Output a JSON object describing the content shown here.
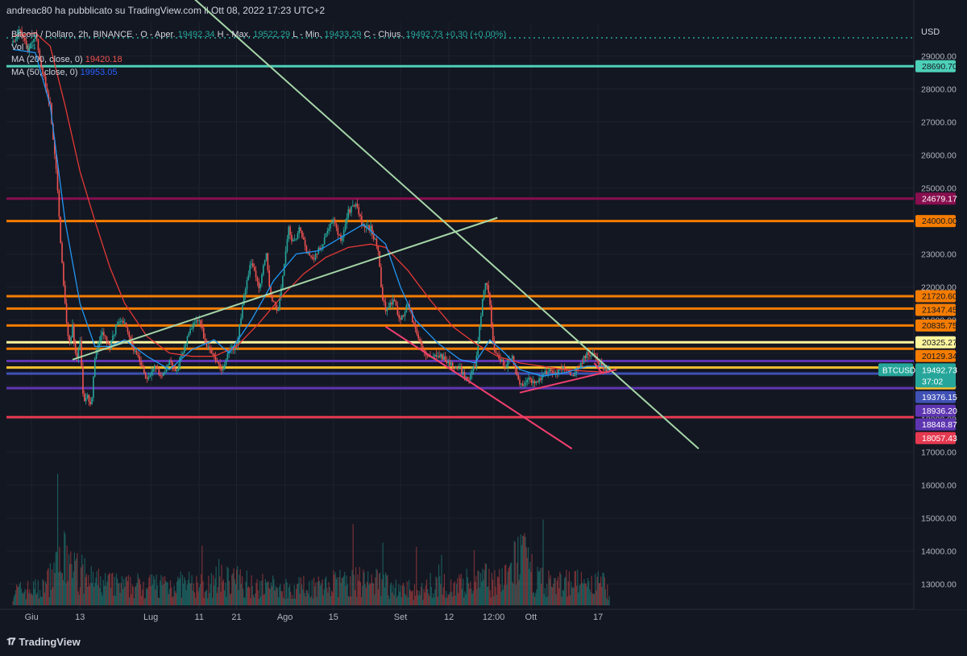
{
  "caption": "andreac80 ha pubblicato su TradingView.com il Ott 08, 2022 17:23 UTC+2",
  "legend": {
    "symbol": "Bitcoin / Dollaro, 2h, BINANCE",
    "o_label": "O - Aper.",
    "o_value": "19492.34",
    "h_label": "H - Max.",
    "h_value": "19522.29",
    "l_label": "L - Min.",
    "l_value": "19433.29",
    "c_label": "C - Chius.",
    "c_value": "19492.73",
    "change": "+0.30 (+0.00%)",
    "vol_label": "Vol",
    "vol_value": "64",
    "ma200_label": "MA (200, close, 0)",
    "ma200_value": "19420.18",
    "ma50_label": "MA (50, close, 0)",
    "ma50_value": "19953.05"
  },
  "footer": {
    "brand": "TradingView",
    "mark": "𝟏𝟕"
  },
  "colors": {
    "background": "#131722",
    "grid": "#1e222d",
    "up": "#26a69a",
    "down": "#ef5350",
    "ma200": "#e53935",
    "ma50": "#2196f3",
    "trendline_green": "#a5d6a7",
    "trendline_red": "#f23f6f",
    "level_teal": "#4dd0b8",
    "level_magenta": "#880e4f",
    "level_orange": "#f57c00",
    "level_yellow": "#fff59d",
    "level_purple": "#5e35b1",
    "level_red": "#e53950",
    "volume": "#787b86"
  },
  "chart_data": {
    "type": "candlestick",
    "symbol_tag": "BTCUSD",
    "currency": "USD",
    "countdown": "37:02",
    "last_price": 19492.73,
    "ylim": [
      12800,
      30200
    ],
    "yticks": [
      13000,
      14000,
      15000,
      16000,
      17000,
      18000,
      19000,
      20000,
      21000,
      22000,
      23000,
      24000,
      25000,
      26000,
      27000,
      28000,
      29000
    ],
    "x_tick_labels": [
      "Giu",
      "13",
      "Lug",
      "11",
      "21",
      "Ago",
      "15",
      "Set",
      "12",
      "12:00",
      "Ott",
      "17"
    ],
    "horizontal_levels": [
      {
        "price": 28690.7,
        "label": "28690.70",
        "color": "#4dd0b8"
      },
      {
        "price": 24679.17,
        "label": "24679.17",
        "color": "#880e4f"
      },
      {
        "price": 24000.0,
        "label": "24000.00",
        "color": "#f57c00"
      },
      {
        "price": 21720.6,
        "label": "21720.60",
        "color": "#f57c00"
      },
      {
        "price": 21347.45,
        "label": "21347.45",
        "color": "#f57c00"
      },
      {
        "price": 20835.75,
        "label": "20835.75",
        "color": "#f57c00"
      },
      {
        "price": 20325.27,
        "label": "20325.27",
        "color": "#fff59d"
      },
      {
        "price": 20129.34,
        "label": "20129.34",
        "color": "#f57c00"
      },
      {
        "price": 19757.63,
        "label": "19757.63",
        "color": "#5e35b1"
      },
      {
        "price": 19560.8,
        "label": "19560.80",
        "color": "#fbc02d"
      },
      {
        "price": 19376.15,
        "label": "19376.15",
        "color": "#3f51b5"
      },
      {
        "price": 18936.2,
        "label": "18936.20",
        "color": "#5e35b1"
      },
      {
        "price": 18057.43,
        "label": "18057.43",
        "color": "#e53950"
      }
    ],
    "extra_axis_labels": [
      {
        "label": "18848.87",
        "color": "#5e35b1"
      }
    ],
    "price_path": [
      [
        0,
        29400
      ],
      [
        2,
        29800
      ],
      [
        4,
        29200
      ],
      [
        6,
        29700
      ],
      [
        8,
        28500
      ],
      [
        10,
        27500
      ],
      [
        12,
        25000
      ],
      [
        13,
        23000
      ],
      [
        14,
        21500
      ],
      [
        15,
        20200
      ],
      [
        16,
        20800
      ],
      [
        17,
        19800
      ],
      [
        18,
        20300
      ],
      [
        19,
        18400
      ],
      [
        20,
        18700
      ],
      [
        21,
        18300
      ],
      [
        22,
        19900
      ],
      [
        24,
        20700
      ],
      [
        26,
        20200
      ],
      [
        28,
        20900
      ],
      [
        30,
        21000
      ],
      [
        32,
        20200
      ],
      [
        34,
        19800
      ],
      [
        36,
        19200
      ],
      [
        38,
        19600
      ],
      [
        40,
        19300
      ],
      [
        42,
        19700
      ],
      [
        44,
        19500
      ],
      [
        46,
        20200
      ],
      [
        48,
        20800
      ],
      [
        50,
        21000
      ],
      [
        52,
        20200
      ],
      [
        54,
        19900
      ],
      [
        56,
        19400
      ],
      [
        58,
        20100
      ],
      [
        60,
        20200
      ],
      [
        62,
        21700
      ],
      [
        64,
        22800
      ],
      [
        66,
        22000
      ],
      [
        68,
        23000
      ],
      [
        69,
        21800
      ],
      [
        71,
        21200
      ],
      [
        72,
        22000
      ],
      [
        74,
        23800
      ],
      [
        75,
        23300
      ],
      [
        77,
        23800
      ],
      [
        79,
        23000
      ],
      [
        81,
        22900
      ],
      [
        83,
        23300
      ],
      [
        84,
        23600
      ],
      [
        86,
        24000
      ],
      [
        88,
        23400
      ],
      [
        90,
        24300
      ],
      [
        92,
        24500
      ],
      [
        94,
        23800
      ],
      [
        96,
        23800
      ],
      [
        98,
        23100
      ],
      [
        99,
        21800
      ],
      [
        100,
        21300
      ],
      [
        102,
        21600
      ],
      [
        104,
        21000
      ],
      [
        106,
        21500
      ],
      [
        108,
        20700
      ],
      [
        110,
        20100
      ],
      [
        112,
        19800
      ],
      [
        114,
        20000
      ],
      [
        116,
        19800
      ],
      [
        118,
        19600
      ],
      [
        120,
        19500
      ],
      [
        122,
        19200
      ],
      [
        124,
        19600
      ],
      [
        125,
        20600
      ],
      [
        126,
        21600
      ],
      [
        127,
        22300
      ],
      [
        128,
        21400
      ],
      [
        129,
        20000
      ],
      [
        130,
        19900
      ],
      [
        132,
        19600
      ],
      [
        134,
        19900
      ],
      [
        136,
        19000
      ],
      [
        138,
        19200
      ],
      [
        140,
        19100
      ],
      [
        142,
        19300
      ],
      [
        144,
        19500
      ],
      [
        146,
        19400
      ],
      [
        148,
        19600
      ],
      [
        150,
        19300
      ],
      [
        152,
        19600
      ],
      [
        154,
        20000
      ],
      [
        156,
        19900
      ],
      [
        158,
        19600
      ],
      [
        160,
        19500
      ]
    ],
    "ma50_path": [
      [
        0,
        29200
      ],
      [
        6,
        29100
      ],
      [
        10,
        27500
      ],
      [
        14,
        24000
      ],
      [
        18,
        21500
      ],
      [
        22,
        20200
      ],
      [
        26,
        20200
      ],
      [
        30,
        20400
      ],
      [
        36,
        19900
      ],
      [
        42,
        19500
      ],
      [
        48,
        20100
      ],
      [
        54,
        20400
      ],
      [
        58,
        20000
      ],
      [
        64,
        21000
      ],
      [
        70,
        22200
      ],
      [
        76,
        23000
      ],
      [
        82,
        23100
      ],
      [
        88,
        23500
      ],
      [
        94,
        23900
      ],
      [
        100,
        23300
      ],
      [
        104,
        22000
      ],
      [
        108,
        21000
      ],
      [
        114,
        20300
      ],
      [
        120,
        19800
      ],
      [
        124,
        19700
      ],
      [
        128,
        20400
      ],
      [
        132,
        20000
      ],
      [
        136,
        19500
      ],
      [
        142,
        19300
      ],
      [
        148,
        19400
      ],
      [
        154,
        19600
      ],
      [
        160,
        19600
      ]
    ],
    "ma200_path": [
      [
        0,
        29600
      ],
      [
        6,
        29700
      ],
      [
        10,
        29300
      ],
      [
        14,
        27500
      ],
      [
        18,
        25500
      ],
      [
        22,
        24000
      ],
      [
        26,
        22600
      ],
      [
        30,
        21500
      ],
      [
        36,
        20500
      ],
      [
        42,
        20000
      ],
      [
        48,
        19900
      ],
      [
        54,
        19900
      ],
      [
        60,
        20200
      ],
      [
        66,
        20900
      ],
      [
        72,
        21700
      ],
      [
        78,
        22400
      ],
      [
        84,
        22900
      ],
      [
        90,
        23200
      ],
      [
        96,
        23300
      ],
      [
        100,
        23200
      ],
      [
        106,
        22500
      ],
      [
        112,
        21600
      ],
      [
        118,
        20800
      ],
      [
        124,
        20300
      ],
      [
        130,
        19900
      ],
      [
        136,
        19700
      ],
      [
        142,
        19600
      ],
      [
        148,
        19500
      ],
      [
        154,
        19450
      ],
      [
        160,
        19420
      ]
    ],
    "trendlines": [
      {
        "color": "#a5d6a7",
        "points": [
          [
            16,
            19800
          ],
          [
            130,
            24100
          ]
        ]
      },
      {
        "color": "#a5d6a7",
        "points": [
          [
            46,
            31000
          ],
          [
            184,
            17100
          ]
        ]
      },
      {
        "color": "#f23f6f",
        "points": [
          [
            100,
            20800
          ],
          [
            150,
            17100
          ]
        ]
      },
      {
        "color": "#f23f6f",
        "points": [
          [
            136,
            18800
          ],
          [
            162,
            19500
          ]
        ]
      },
      {
        "color": "#f23f6f",
        "points": [
          [
            156,
            19700
          ],
          [
            158,
            19400
          ]
        ]
      }
    ],
    "volume_profile": [
      [
        0,
        1
      ],
      [
        8,
        1.2
      ],
      [
        14,
        3.2
      ],
      [
        18,
        2.2
      ],
      [
        22,
        1.6
      ],
      [
        30,
        1.3
      ],
      [
        40,
        1.5
      ],
      [
        50,
        1.4
      ],
      [
        58,
        1.8
      ],
      [
        64,
        1.5
      ],
      [
        72,
        1.2
      ],
      [
        80,
        1.3
      ],
      [
        90,
        1.6
      ],
      [
        98,
        1.7
      ],
      [
        104,
        1.1
      ],
      [
        112,
        1.2
      ],
      [
        120,
        1.5
      ],
      [
        126,
        1.8
      ],
      [
        132,
        1.7
      ],
      [
        136,
        3.6
      ],
      [
        140,
        1.9
      ],
      [
        146,
        1.4
      ],
      [
        150,
        1.8
      ],
      [
        154,
        1.2
      ],
      [
        158,
        1.6
      ],
      [
        160,
        0.9
      ]
    ]
  }
}
